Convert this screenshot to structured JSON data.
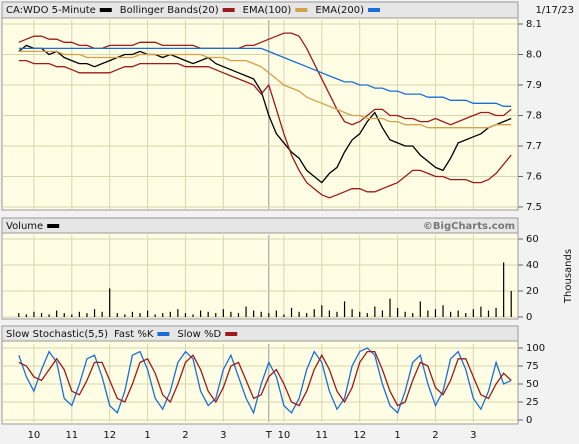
{
  "chart_data": [
    {
      "type": "line",
      "date": "1/17/23",
      "ylim": [
        7.5,
        8.1
      ],
      "yticks": [
        7.5,
        7.6,
        7.7,
        7.8,
        7.9,
        {
          "value": 8,
          "label": "8.0"
        },
        8.1
      ],
      "series": [
        {
          "name": "CA:WDO 5-Minute",
          "color": "#000000",
          "values": [
            8.01,
            8.03,
            8.02,
            8.02,
            8.0,
            8.01,
            7.99,
            7.98,
            7.97,
            7.97,
            7.96,
            7.97,
            7.98,
            7.99,
            8.0,
            8.0,
            8.01,
            8.0,
            8.0,
            7.99,
            8.0,
            7.99,
            7.98,
            7.97,
            7.98,
            7.99,
            7.97,
            7.96,
            7.95,
            7.94,
            7.93,
            7.92,
            7.88,
            7.8,
            7.74,
            7.71,
            7.68,
            7.66,
            7.62,
            7.6,
            7.58,
            7.61,
            7.63,
            7.68,
            7.72,
            7.74,
            7.78,
            7.81,
            7.76,
            7.72,
            7.71,
            7.7,
            7.7,
            7.67,
            7.65,
            7.63,
            7.62,
            7.66,
            7.71,
            7.72,
            7.73,
            7.74,
            7.76,
            7.77,
            7.78,
            7.79
          ]
        },
        {
          "name": "Bollinger Bands(20)",
          "color": "#9c1c1c",
          "values": [
            8.04,
            8.05,
            8.06,
            8.06,
            8.05,
            8.05,
            8.04,
            8.04,
            8.03,
            8.03,
            8.02,
            8.02,
            8.03,
            8.03,
            8.03,
            8.03,
            8.04,
            8.04,
            8.04,
            8.03,
            8.03,
            8.03,
            8.03,
            8.03,
            8.02,
            8.02,
            8.02,
            8.02,
            8.02,
            8.02,
            8.03,
            8.03,
            8.04,
            8.05,
            8.06,
            8.07,
            8.07,
            8.06,
            8.02,
            7.97,
            7.92,
            7.87,
            7.82,
            7.78,
            7.77,
            7.78,
            7.8,
            7.82,
            7.82,
            7.8,
            7.8,
            7.79,
            7.79,
            7.78,
            7.78,
            7.79,
            7.78,
            7.77,
            7.78,
            7.79,
            7.8,
            7.81,
            7.81,
            7.8,
            7.8,
            7.82
          ],
          "lower": [
            7.98,
            7.98,
            7.97,
            7.97,
            7.97,
            7.96,
            7.96,
            7.95,
            7.94,
            7.94,
            7.94,
            7.94,
            7.94,
            7.95,
            7.96,
            7.96,
            7.97,
            7.97,
            7.97,
            7.97,
            7.97,
            7.97,
            7.96,
            7.96,
            7.96,
            7.96,
            7.95,
            7.94,
            7.93,
            7.92,
            7.91,
            7.9,
            7.87,
            7.9,
            7.82,
            7.74,
            7.67,
            7.62,
            7.58,
            7.56,
            7.54,
            7.53,
            7.54,
            7.55,
            7.56,
            7.56,
            7.55,
            7.55,
            7.56,
            7.57,
            7.58,
            7.6,
            7.62,
            7.62,
            7.61,
            7.6,
            7.6,
            7.59,
            7.59,
            7.59,
            7.58,
            7.58,
            7.59,
            7.61,
            7.64,
            7.67
          ]
        },
        {
          "name": "EMA(100)",
          "color": "#d4a04a",
          "values": [
            8.01,
            8.01,
            8.01,
            8.01,
            8.01,
            8.01,
            8.0,
            8.0,
            8.0,
            7.99,
            7.99,
            7.99,
            7.99,
            7.99,
            7.99,
            7.99,
            8.0,
            8.0,
            8.0,
            8.0,
            8.0,
            8.0,
            8.0,
            8.0,
            8.0,
            7.99,
            7.99,
            7.99,
            7.98,
            7.98,
            7.98,
            7.97,
            7.96,
            7.94,
            7.92,
            7.9,
            7.89,
            7.88,
            7.86,
            7.85,
            7.84,
            7.83,
            7.82,
            7.81,
            7.8,
            7.8,
            7.79,
            7.79,
            7.79,
            7.78,
            7.78,
            7.77,
            7.77,
            7.77,
            7.76,
            7.76,
            7.76,
            7.76,
            7.76,
            7.76,
            7.76,
            7.76,
            7.76,
            7.77,
            7.77,
            7.77
          ]
        },
        {
          "name": "EMA(200)",
          "color": "#1a6fd6",
          "values": [
            8.02,
            8.02,
            8.02,
            8.02,
            8.02,
            8.02,
            8.02,
            8.02,
            8.02,
            8.02,
            8.02,
            8.02,
            8.02,
            8.02,
            8.02,
            8.02,
            8.02,
            8.02,
            8.02,
            8.02,
            8.02,
            8.02,
            8.02,
            8.02,
            8.02,
            8.02,
            8.02,
            8.02,
            8.02,
            8.02,
            8.02,
            8.02,
            8.02,
            8.01,
            8.0,
            7.99,
            7.98,
            7.97,
            7.96,
            7.95,
            7.94,
            7.93,
            7.92,
            7.91,
            7.91,
            7.9,
            7.9,
            7.89,
            7.89,
            7.88,
            7.88,
            7.87,
            7.87,
            7.87,
            7.86,
            7.86,
            7.86,
            7.85,
            7.85,
            7.85,
            7.84,
            7.84,
            7.84,
            7.84,
            7.83,
            7.83
          ]
        }
      ]
    },
    {
      "type": "bar",
      "source": "©BigCharts.com",
      "y_label": "Thousands",
      "ylim": [
        0,
        60
      ],
      "yticks": [
        0,
        20,
        40,
        60
      ],
      "series": [
        {
          "name": "Volume",
          "color": "#000000",
          "values": [
            3,
            2,
            4,
            3,
            2,
            5,
            3,
            2,
            4,
            3,
            6,
            4,
            22,
            3,
            2,
            4,
            3,
            5,
            2,
            3,
            4,
            6,
            3,
            2,
            5,
            4,
            3,
            6,
            4,
            3,
            8,
            5,
            4,
            3,
            5,
            2,
            7,
            4,
            3,
            6,
            9,
            5,
            4,
            12,
            6,
            4,
            3,
            8,
            5,
            14,
            7,
            4,
            3,
            12,
            5,
            6,
            9,
            4,
            5,
            3,
            6,
            8,
            5,
            7,
            42,
            20
          ]
        }
      ]
    },
    {
      "type": "line",
      "title": "Slow Stochastic(5,5)",
      "ylim": [
        0,
        100
      ],
      "yticks": [
        0,
        25,
        50,
        75,
        100
      ],
      "categories": [
        null,
        null,
        "10",
        null,
        null,
        null,
        null,
        "11",
        null,
        null,
        null,
        null,
        "12",
        null,
        null,
        null,
        null,
        "1",
        null,
        null,
        null,
        null,
        "2",
        null,
        null,
        null,
        null,
        "3",
        null,
        null,
        null,
        null,
        null,
        "T",
        null,
        "10",
        null,
        null,
        null,
        null,
        "11",
        null,
        null,
        null,
        null,
        "12",
        null,
        null,
        null,
        null,
        "1",
        null,
        null,
        null,
        null,
        "2",
        null,
        null,
        null,
        null,
        "3",
        null,
        null,
        null,
        null,
        null
      ],
      "series": [
        {
          "name": "Fast %K",
          "color": "#1a6fd6",
          "values": [
            90,
            60,
            40,
            70,
            95,
            80,
            30,
            20,
            50,
            85,
            90,
            60,
            20,
            10,
            40,
            90,
            95,
            70,
            30,
            15,
            40,
            80,
            95,
            85,
            40,
            20,
            30,
            70,
            90,
            60,
            30,
            10,
            50,
            80,
            60,
            20,
            10,
            30,
            70,
            95,
            80,
            40,
            15,
            30,
            75,
            95,
            100,
            90,
            50,
            20,
            10,
            40,
            80,
            90,
            50,
            20,
            40,
            85,
            95,
            70,
            30,
            15,
            40,
            80,
            50,
            55
          ]
        },
        {
          "name": "Slow %D",
          "color": "#9c1c1c",
          "values": [
            80,
            75,
            60,
            55,
            70,
            85,
            70,
            40,
            35,
            55,
            80,
            80,
            55,
            30,
            25,
            50,
            80,
            85,
            65,
            35,
            25,
            50,
            80,
            90,
            70,
            40,
            25,
            45,
            75,
            80,
            55,
            30,
            35,
            60,
            70,
            50,
            25,
            20,
            40,
            70,
            90,
            70,
            40,
            25,
            45,
            80,
            95,
            95,
            70,
            40,
            20,
            25,
            55,
            80,
            75,
            45,
            35,
            55,
            85,
            85,
            60,
            35,
            30,
            50,
            65,
            55
          ]
        }
      ]
    }
  ]
}
